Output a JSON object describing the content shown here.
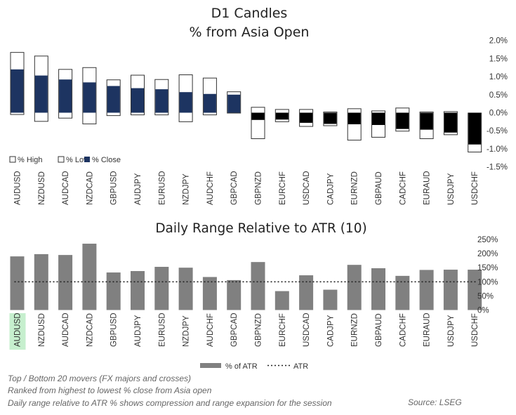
{
  "chart_data": [
    {
      "type": "candlestick",
      "title": "D1 Candles",
      "subtitle": "% from Asia Open",
      "categories": [
        "AUDUSD",
        "NZDUSD",
        "AUDCAD",
        "NZDCAD",
        "GBPUSD",
        "AUDJPY",
        "EURUSD",
        "NZDJPY",
        "AUDCHF",
        "GBPCAD",
        "GBPNZD",
        "EURCHF",
        "USDCAD",
        "CADJPY",
        "EURNZD",
        "GBPAUD",
        "CADCHF",
        "EURAUD",
        "USDJPY",
        "USDCHF"
      ],
      "series": [
        {
          "name": "% High",
          "values": [
            1.67,
            1.57,
            1.2,
            1.25,
            0.91,
            1.04,
            0.92,
            1.05,
            0.96,
            0.58,
            0.15,
            0.09,
            0.09,
            0.02,
            0.11,
            0.05,
            0.13,
            0.02,
            0.03,
            -0.01
          ]
        },
        {
          "name": "% Low",
          "values": [
            -0.05,
            -0.24,
            -0.15,
            -0.31,
            -0.08,
            -0.06,
            -0.06,
            -0.25,
            -0.06,
            -0.01,
            -0.72,
            -0.25,
            -0.38,
            -0.36,
            -0.76,
            -0.68,
            -0.51,
            -0.72,
            -0.61,
            -1.09
          ]
        },
        {
          "name": "% Close",
          "values": [
            1.2,
            1.03,
            0.92,
            0.84,
            0.74,
            0.68,
            0.65,
            0.57,
            0.52,
            0.5,
            -0.2,
            -0.19,
            -0.28,
            -0.31,
            -0.32,
            -0.34,
            -0.45,
            -0.47,
            -0.55,
            -0.88
          ]
        }
      ],
      "yticks": [
        "2.0%",
        "1.5%",
        "1.0%",
        "0.5%",
        "0.0%",
        "-0.5%",
        "-1.0%",
        "-1.5%"
      ],
      "ylim": [
        -1.5,
        2.0
      ],
      "legend": [
        "% High",
        "% Low",
        "% Close"
      ],
      "legend_position": "bottom-left",
      "colors": {
        "close_up": "#1d3461",
        "close_down": "#000000",
        "wick": "#ffffff",
        "border": "#333333"
      }
    },
    {
      "type": "bar",
      "title": "Daily Range Relative to ATR (10)",
      "categories": [
        "AUDUSD",
        "NZDUSD",
        "AUDCAD",
        "NZDCAD",
        "GBPUSD",
        "AUDJPY",
        "EURUSD",
        "NZDJPY",
        "AUDCHF",
        "GBPCAD",
        "GBPNZD",
        "EURCHF",
        "USDCAD",
        "CADJPY",
        "EURNZD",
        "GBPAUD",
        "CADCHF",
        "EURAUD",
        "USDJPY",
        "USDCHF"
      ],
      "series": [
        {
          "name": "% of ATR",
          "values": [
            190,
            198,
            195,
            235,
            133,
            138,
            153,
            150,
            117,
            106,
            170,
            67,
            123,
            72,
            160,
            148,
            121,
            142,
            143,
            143
          ]
        },
        {
          "name": "ATR",
          "values": [
            100,
            100,
            100,
            100,
            100,
            100,
            100,
            100,
            100,
            100,
            100,
            100,
            100,
            100,
            100,
            100,
            100,
            100,
            100,
            100
          ]
        }
      ],
      "yticks": [
        "250%",
        "200%",
        "150%",
        "100%",
        "50%",
        "0%"
      ],
      "ylim": [
        0,
        250
      ],
      "highlighted_category": "AUDUSD",
      "legend": [
        "% of ATR",
        "ATR"
      ],
      "legend_position": "bottom",
      "colors": {
        "bar": "#808080",
        "atr_line": "#222222",
        "highlight": "#c6efce"
      }
    }
  ],
  "footnotes": [
    "Top / Bottom 20 movers (FX majors and crosses)",
    "Ranked from highest to lowest % close from Asia open",
    "Daily range relative to ATR % shows compression and range expansion for the session"
  ],
  "source": "Source: LSEG"
}
